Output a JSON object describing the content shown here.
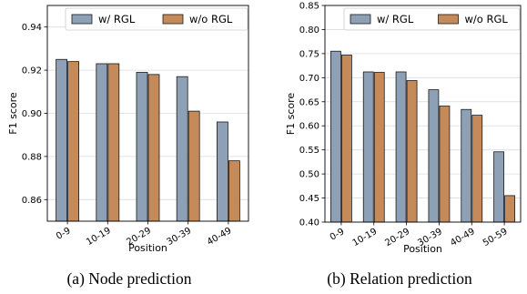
{
  "colors": {
    "w_rgl": "#8ea0b6",
    "wo_rgl": "#c48a5a",
    "grid": "#d8dbe8"
  },
  "chart_data": [
    {
      "type": "bar",
      "caption": "(a)  Node prediction",
      "xlabel": "Position",
      "ylabel": "F1 score",
      "categories": [
        "0-9",
        "10-19",
        "20-29",
        "30-39",
        "40-49"
      ],
      "ylim": [
        0.85,
        0.95
      ],
      "yticks": [
        0.86,
        0.88,
        0.9,
        0.92,
        0.94
      ],
      "ytick_labels": [
        "0.86",
        "0.88",
        "0.90",
        "0.92",
        "0.94"
      ],
      "grid": true,
      "legend_position": "top",
      "series": [
        {
          "name": "w/ RGL",
          "values": [
            0.925,
            0.923,
            0.919,
            0.917,
            0.896
          ]
        },
        {
          "name": "w/o RGL",
          "values": [
            0.924,
            0.923,
            0.918,
            0.901,
            0.878
          ]
        }
      ]
    },
    {
      "type": "bar",
      "caption": "(b)  Relation prediction",
      "xlabel": "Position",
      "ylabel": "F1 score",
      "categories": [
        "0-9",
        "10-19",
        "20-29",
        "30-39",
        "40-49",
        "50-59"
      ],
      "ylim": [
        0.4,
        0.85
      ],
      "yticks": [
        0.4,
        0.45,
        0.5,
        0.55,
        0.6,
        0.65,
        0.7,
        0.75,
        0.8,
        0.85
      ],
      "ytick_labels": [
        "0.40",
        "0.45",
        "0.50",
        "0.55",
        "0.60",
        "0.65",
        "0.70",
        "0.75",
        "0.80",
        "0.85"
      ],
      "grid": true,
      "legend_position": "top",
      "series": [
        {
          "name": "w/ RGL",
          "values": [
            0.755,
            0.712,
            0.712,
            0.675,
            0.634,
            0.546
          ]
        },
        {
          "name": "w/o RGL",
          "values": [
            0.747,
            0.711,
            0.694,
            0.641,
            0.622,
            0.455
          ]
        }
      ]
    }
  ]
}
